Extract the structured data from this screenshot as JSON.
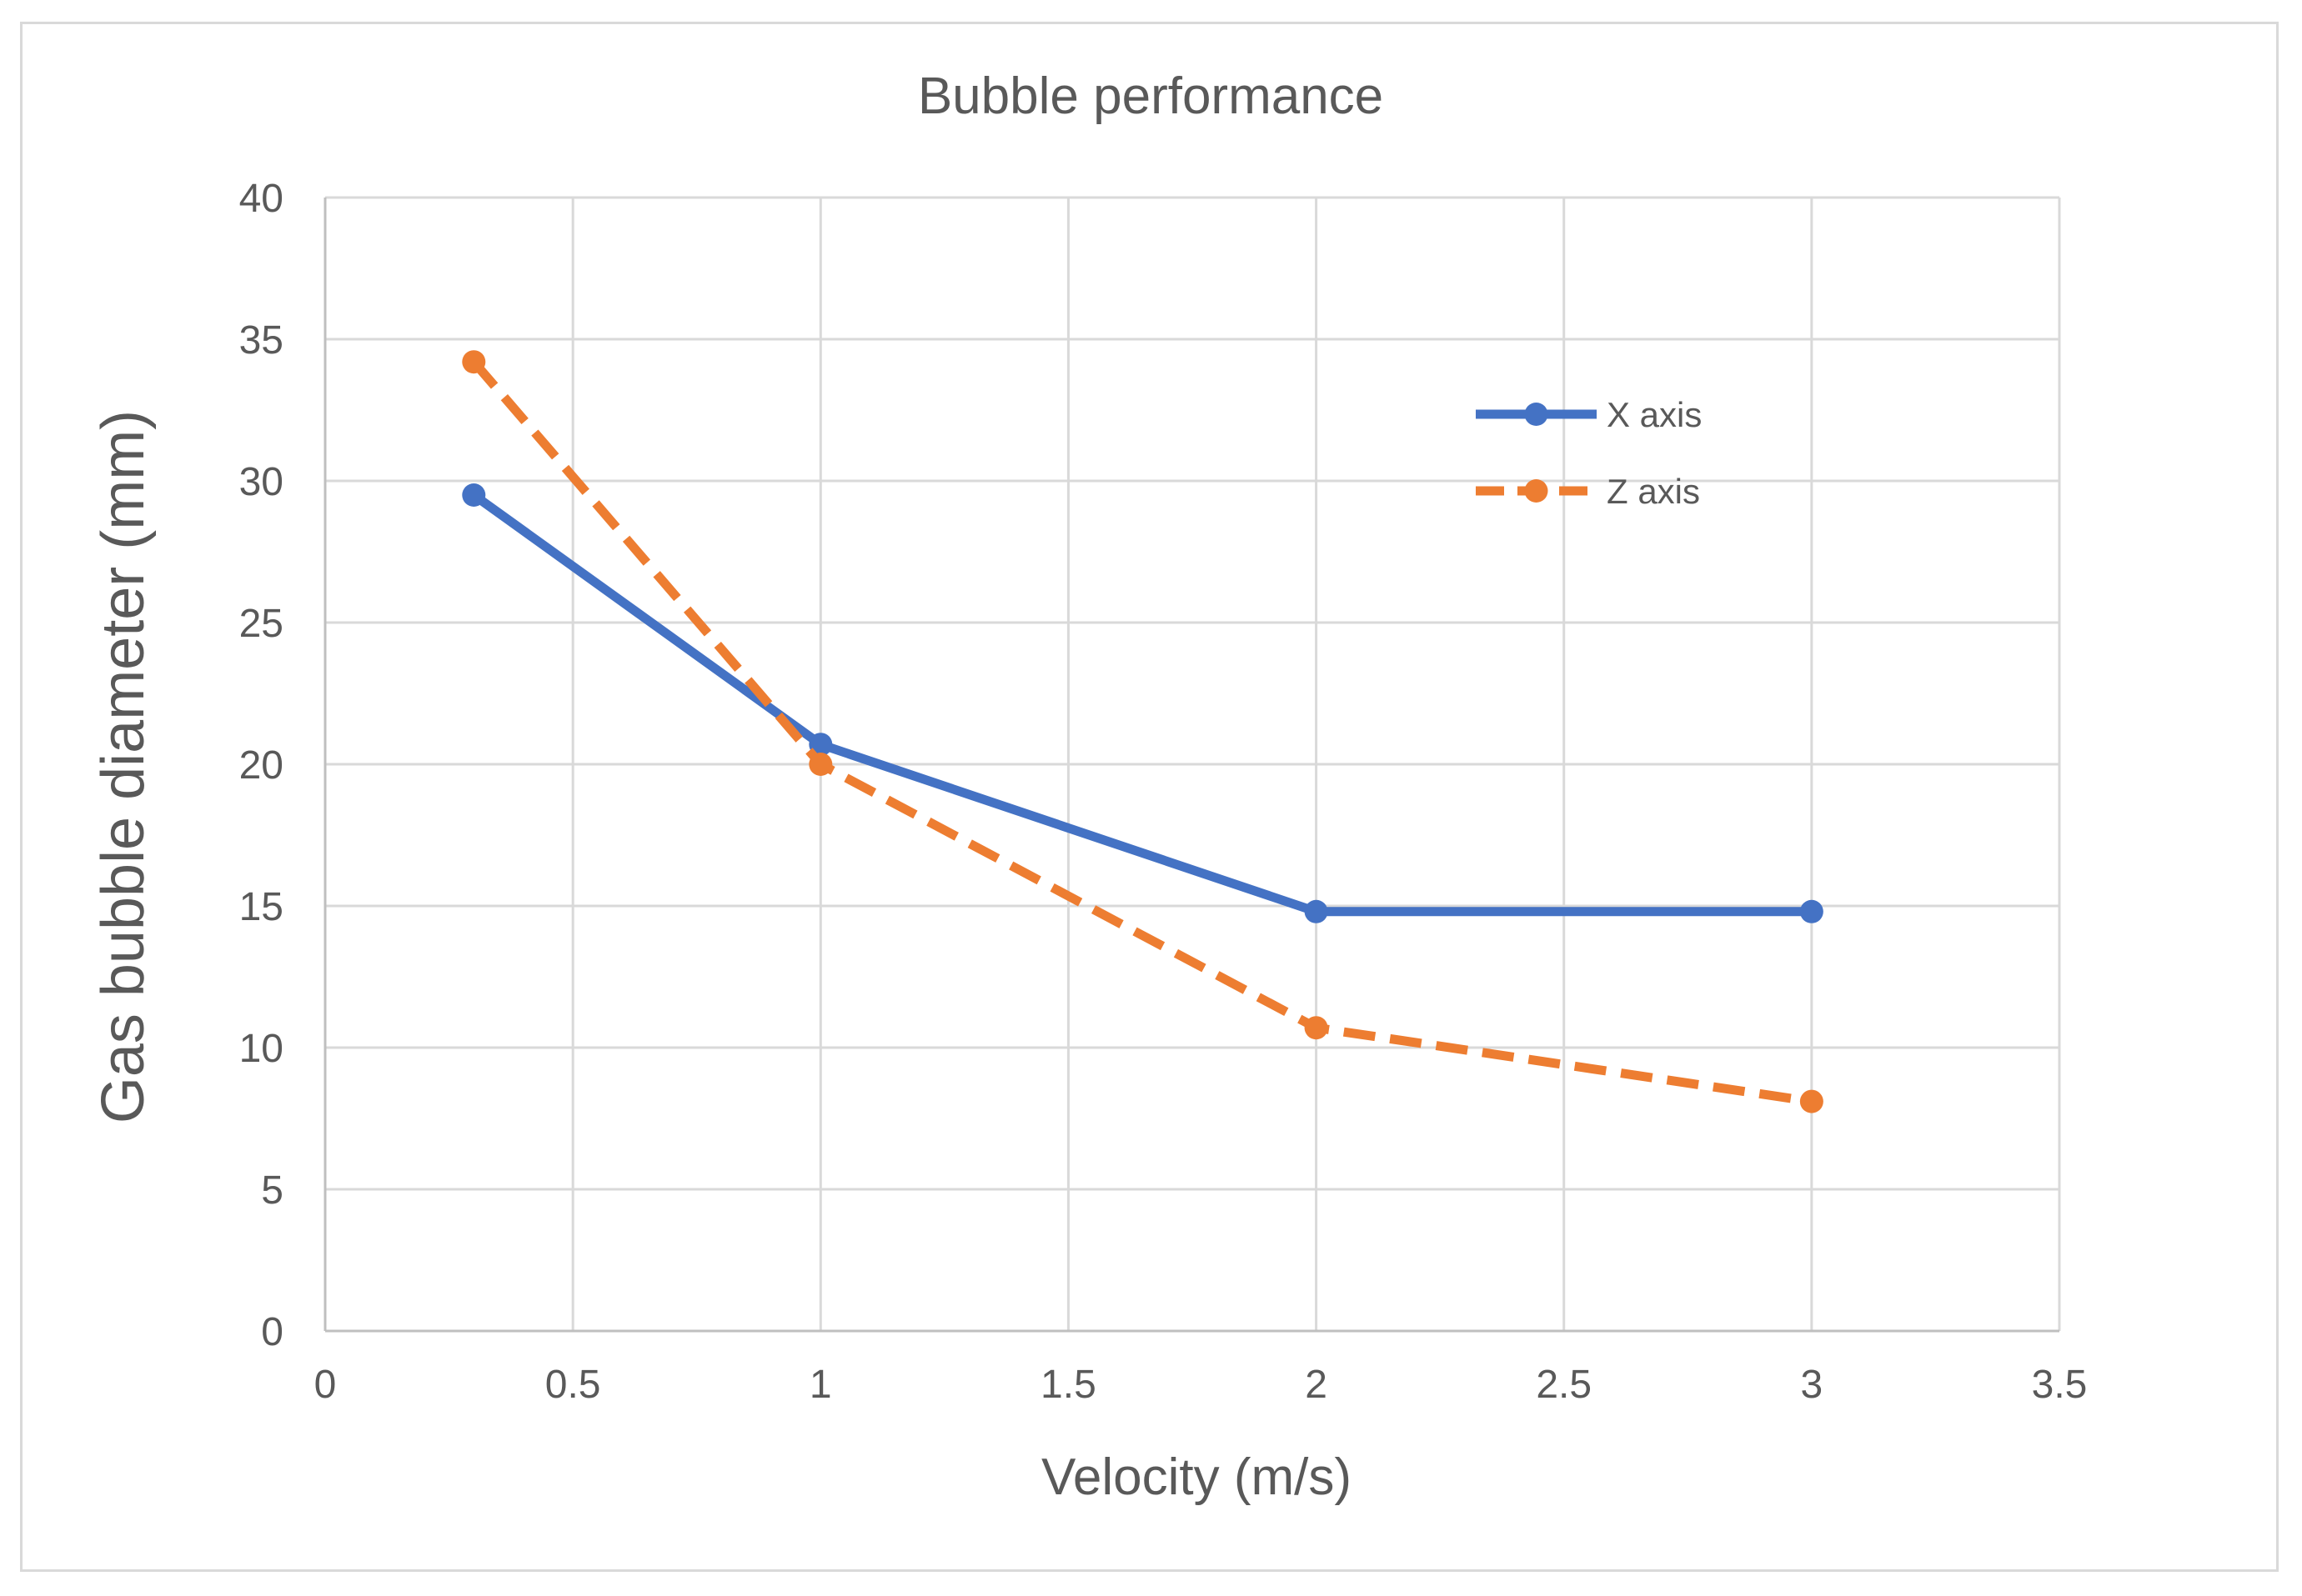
{
  "chart_data": {
    "type": "line",
    "title": "Bubble performance",
    "xlabel": "Velocity (m/s)",
    "ylabel": "Gas bubble diameter   (mm)",
    "xlim": [
      0,
      3.5
    ],
    "ylim": [
      0,
      40
    ],
    "x_ticks": [
      0,
      0.5,
      1,
      1.5,
      2,
      2.5,
      3,
      3.5
    ],
    "x_tick_labels": [
      "0",
      "0.5",
      "1",
      "1.5",
      "2",
      "2.5",
      "3",
      "3.5"
    ],
    "y_ticks": [
      0,
      5,
      10,
      15,
      20,
      25,
      30,
      35,
      40
    ],
    "y_tick_labels": [
      "0",
      "5",
      "10",
      "15",
      "20",
      "25",
      "30",
      "35",
      "40"
    ],
    "grid": true,
    "legend_position": "top-right",
    "series": [
      {
        "name": "X axis",
        "color": "#4472c4",
        "line_style": "solid",
        "marker": "circle",
        "x": [
          0.3,
          1,
          2,
          3
        ],
        "values": [
          29.5,
          20.7,
          14.8,
          14.8
        ]
      },
      {
        "name": "Z axis",
        "color": "#ed7d31",
        "line_style": "dashed",
        "marker": "circle",
        "x": [
          0.3,
          1,
          2,
          3
        ],
        "values": [
          34.2,
          20.0,
          10.7,
          8.1
        ]
      }
    ]
  }
}
